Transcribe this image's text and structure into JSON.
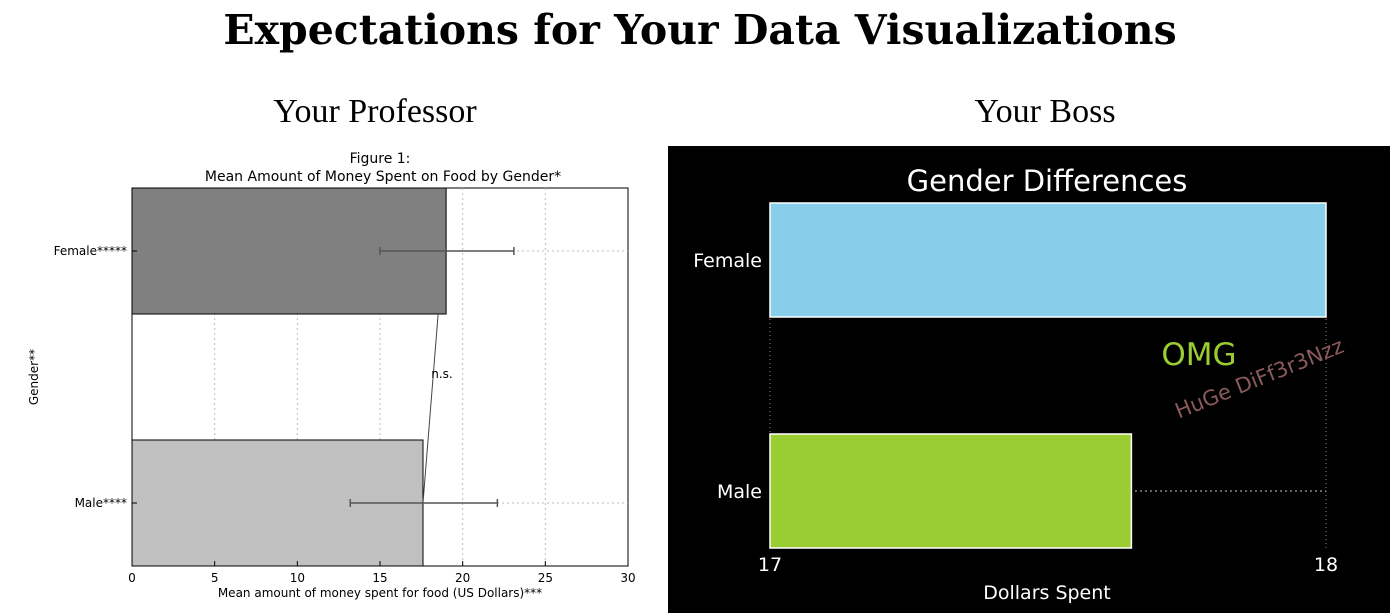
{
  "page": {
    "title": "Expectations for Your Data Visualizations",
    "left_heading": "Your Professor",
    "right_heading": "Your Boss"
  },
  "chart_data": [
    {
      "type": "bar",
      "orientation": "horizontal",
      "title_line1": "Figure 1:",
      "title_line2": "Mean Amount of Money Spent on Food by Gender*",
      "xlabel": "Mean amount of money spent for food (US Dollars)***",
      "ylabel": "Gender**",
      "categories": [
        "Female*****",
        "Male****"
      ],
      "values": [
        19.0,
        17.6
      ],
      "errors": [
        [
          15.0,
          23.1
        ],
        [
          13.2,
          22.1
        ]
      ],
      "xlim": [
        0,
        30
      ],
      "xticks": [
        0,
        5,
        10,
        15,
        20,
        25,
        30
      ],
      "annotation": "n.s.",
      "bar_colors": [
        "#808080",
        "#c0c0c0"
      ],
      "grid": true,
      "background": "#ffffff"
    },
    {
      "type": "bar",
      "orientation": "horizontal",
      "title": "Gender Differences",
      "xlabel": "Dollars Spent",
      "categories": [
        "Female",
        "Male"
      ],
      "values": [
        18.0,
        17.65
      ],
      "xlim": [
        17,
        18
      ],
      "xticks": [
        17,
        18
      ],
      "annotations": [
        "OMG",
        "HuGe DiFf3r3Nzz"
      ],
      "bar_colors": [
        "#87ceeb",
        "#9acd32"
      ],
      "background": "#000000",
      "text_color": "#ffffff",
      "annotation_colors": [
        "#9acd32",
        "#8b5a5a"
      ]
    }
  ]
}
